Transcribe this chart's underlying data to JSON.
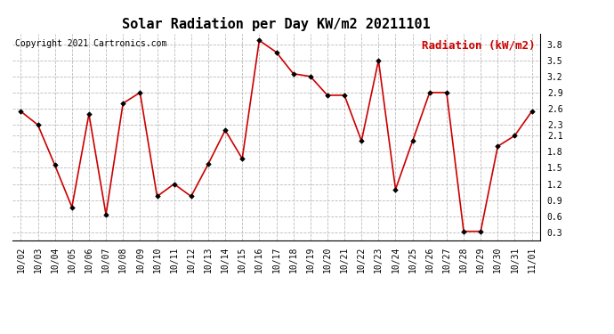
{
  "title": "Solar Radiation per Day KW/m2 20211101",
  "copyright_text": "Copyright 2021 Cartronics.com",
  "legend_label": "Radiation (kW/m2)",
  "dates": [
    "10/02",
    "10/03",
    "10/04",
    "10/05",
    "10/06",
    "10/07",
    "10/08",
    "10/09",
    "10/10",
    "10/11",
    "10/12",
    "10/13",
    "10/14",
    "10/15",
    "10/16",
    "10/17",
    "10/18",
    "10/19",
    "10/20",
    "10/21",
    "10/22",
    "10/23",
    "10/24",
    "10/25",
    "10/26",
    "10/27",
    "10/28",
    "10/29",
    "10/30",
    "10/31",
    "11/01"
  ],
  "values": [
    2.55,
    2.3,
    1.55,
    0.77,
    2.5,
    0.63,
    2.7,
    2.9,
    0.97,
    1.2,
    0.97,
    1.57,
    2.2,
    1.67,
    3.87,
    3.65,
    3.25,
    3.2,
    2.85,
    2.85,
    2.0,
    3.5,
    1.1,
    2.0,
    2.9,
    2.9,
    0.32,
    0.32,
    1.9,
    2.1,
    2.55
  ],
  "line_color": "#cc0000",
  "marker_color": "#000000",
  "background_color": "#ffffff",
  "grid_color": "#bbbbbb",
  "ylim_min": 0.15,
  "ylim_max": 4.0,
  "yticks": [
    0.3,
    0.6,
    0.9,
    1.2,
    1.5,
    1.8,
    2.1,
    2.3,
    2.6,
    2.9,
    3.2,
    3.5,
    3.8
  ],
  "title_fontsize": 11,
  "copyright_fontsize": 7,
  "legend_fontsize": 9,
  "tick_fontsize": 7
}
